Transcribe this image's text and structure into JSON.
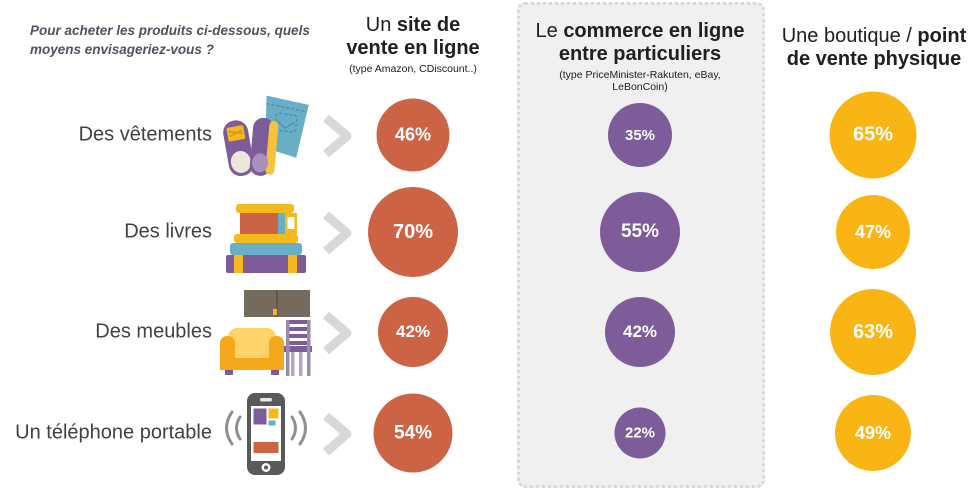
{
  "question": "Pour acheter les produits ci-dessous, quels moyens envisageriez-vous ?",
  "columns": [
    {
      "title_normal": "Un ",
      "title_bold": "site de vente en ligne",
      "subtitle": "(type Amazon, CDiscount..)",
      "color": "#cd6345"
    },
    {
      "title_normal": "Le ",
      "title_bold": "commerce en ligne entre particuliers",
      "subtitle": "(type PriceMinister-Rakuten, eBay, LeBonCoin)",
      "color": "#7d5c99"
    },
    {
      "title_normal": "Une boutique / ",
      "title_bold": "point de vente physique",
      "subtitle": "",
      "color": "#f9b513"
    }
  ],
  "rows": [
    {
      "label": "Des vêtements",
      "icon": "clothes-icon"
    },
    {
      "label": "Des livres",
      "icon": "books-icon"
    },
    {
      "label": "Des meubles",
      "icon": "furniture-icon"
    },
    {
      "label": "Un téléphone portable",
      "icon": "phone-icon"
    }
  ],
  "chart_data": {
    "type": "bubble",
    "title": "Pour acheter les produits ci-dessous, quels moyens envisageriez-vous ?",
    "categories": [
      "Des vêtements",
      "Des livres",
      "Des meubles",
      "Un téléphone portable"
    ],
    "series": [
      {
        "name": "Un site de vente en ligne (type Amazon, CDiscount..)",
        "values": [
          46,
          70,
          42,
          54
        ],
        "color": "#cd6345"
      },
      {
        "name": "Le commerce en ligne entre particuliers (type PriceMinister-Rakuten, eBay, LeBonCoin)",
        "values": [
          35,
          55,
          42,
          22
        ],
        "color": "#7d5c99"
      },
      {
        "name": "Une boutique / point de vente physique",
        "values": [
          65,
          47,
          63,
          49
        ],
        "color": "#f9b513"
      }
    ],
    "unit": "%",
    "layout": "bubble size proportional to percentage; middle series highlighted in dotted grey box"
  },
  "colors": {
    "orange": "#cd6345",
    "purple": "#7d5c99",
    "yellow": "#f9b513",
    "box_background": "#f0f0f0",
    "box_border": "#d9d9d9",
    "chevron": "#d8d8d8",
    "label_text": "#3e4247",
    "header_text": "#202020",
    "question_text": "#4e535d"
  }
}
